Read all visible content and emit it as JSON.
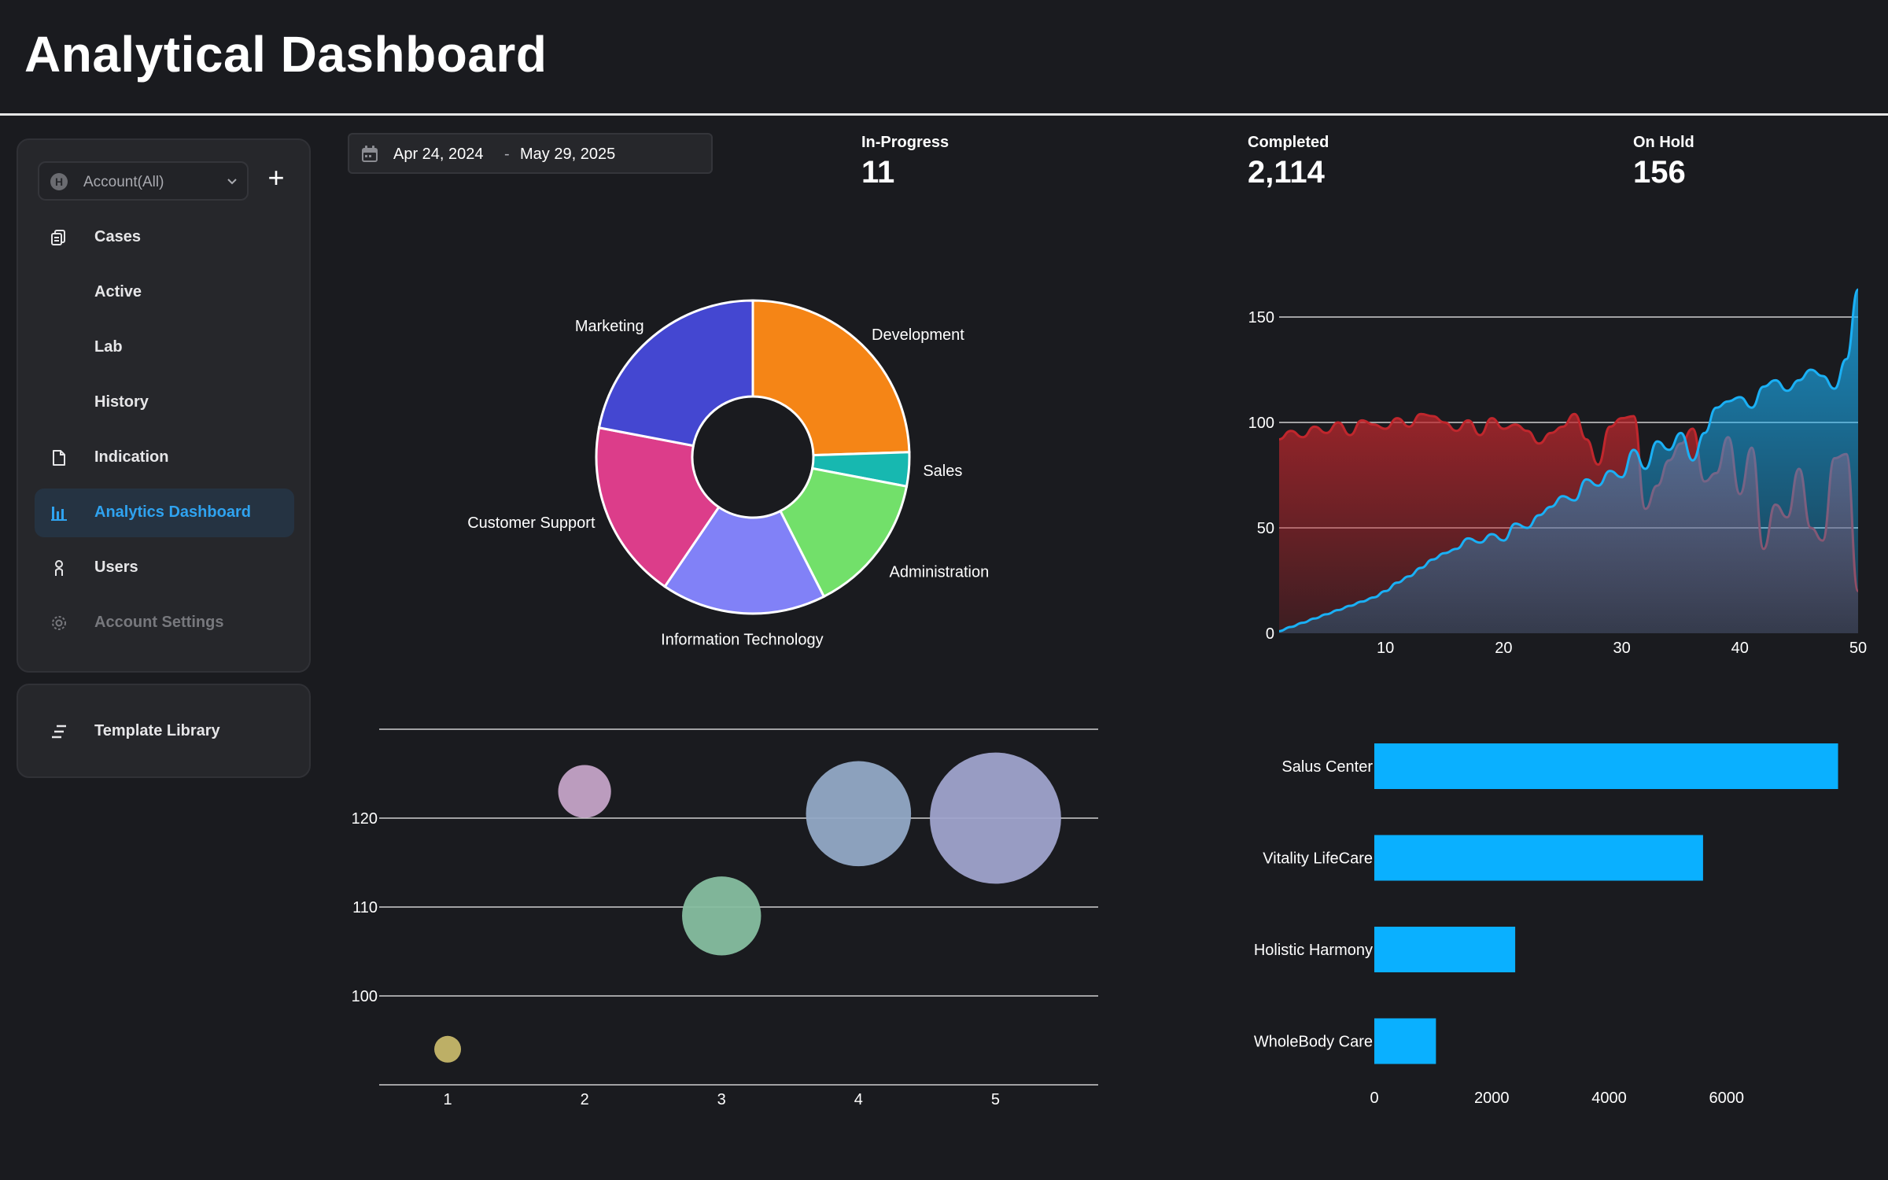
{
  "header": {
    "title": "Analytical Dashboard"
  },
  "sidebar": {
    "account_selector": {
      "label": "Account(All)",
      "glyph": "H"
    },
    "add_label": "+",
    "items": [
      {
        "label": "Cases",
        "icon": "cases-icon"
      },
      {
        "label": "Active"
      },
      {
        "label": "Lab"
      },
      {
        "label": "History"
      },
      {
        "label": "Indication",
        "icon": "document-icon"
      },
      {
        "label": "Analytics Dashboard",
        "icon": "bar-chart-icon",
        "active": true
      },
      {
        "label": "Users",
        "icon": "user-icon"
      },
      {
        "label": "Account Settings",
        "icon": "gear-icon",
        "disabled": true
      }
    ],
    "template_library": {
      "label": "Template Library",
      "icon": "list-icon"
    }
  },
  "date_range": {
    "start": "Apr 24, 2024",
    "separator": "-",
    "end": "May 29, 2025"
  },
  "stats": [
    {
      "label": "In-Progress",
      "value": "11"
    },
    {
      "label": "Completed",
      "value": "2,114"
    },
    {
      "label": "On Hold",
      "value": "156"
    }
  ],
  "colors": {
    "background": "#1a1b1f",
    "panel": "#26272b",
    "accent": "#2fa3f0",
    "bar": "#0ab0ff"
  },
  "chart_data": [
    {
      "type": "pie",
      "donut": true,
      "slices": [
        {
          "label": "Development",
          "value": 24.5,
          "color": "#f58516"
        },
        {
          "label": "Sales",
          "value": 3.5,
          "color": "#17b8b0"
        },
        {
          "label": "Administration",
          "value": 14.5,
          "color": "#72e06a"
        },
        {
          "label": "Information Technology",
          "value": 17.0,
          "color": "#8181f7"
        },
        {
          "label": "Customer Support",
          "value": 18.5,
          "color": "#dc3d8a"
        },
        {
          "label": "Marketing",
          "value": 22.0,
          "color": "#4447d1"
        }
      ]
    },
    {
      "type": "area",
      "x": [
        1,
        2,
        3,
        4,
        5,
        6,
        7,
        8,
        9,
        10,
        11,
        12,
        13,
        14,
        15,
        16,
        17,
        18,
        19,
        20,
        21,
        22,
        23,
        24,
        25,
        26,
        27,
        28,
        29,
        30,
        31,
        32,
        33,
        34,
        35,
        36,
        37,
        38,
        39,
        40,
        41,
        42,
        43,
        44,
        45,
        46,
        47,
        48,
        49,
        50
      ],
      "series": [
        {
          "color": "#c0272d",
          "values": [
            92,
            96,
            93,
            98,
            95,
            100,
            94,
            101,
            99,
            97,
            102,
            98,
            104,
            103,
            100,
            96,
            101,
            94,
            102,
            97,
            99,
            96,
            90,
            95,
            98,
            104,
            92,
            80,
            98,
            102,
            103,
            59,
            70,
            82,
            90,
            97,
            72,
            76,
            93,
            66,
            88,
            40,
            61,
            55,
            78,
            50,
            44,
            83,
            85,
            20
          ]
        },
        {
          "color": "#1ab0f5",
          "values": [
            1,
            3,
            5,
            7,
            9,
            11,
            13,
            15,
            17,
            20,
            24,
            27,
            31,
            35,
            38,
            40,
            45,
            43,
            47,
            44,
            52,
            50,
            56,
            60,
            65,
            63,
            73,
            70,
            77,
            74,
            87,
            78,
            91,
            87,
            95,
            82,
            95,
            107,
            110,
            112,
            107,
            117,
            120,
            115,
            120,
            125,
            122,
            116,
            130,
            163
          ]
        }
      ],
      "xticks": [
        10,
        20,
        30,
        40,
        50
      ],
      "yticks": [
        0,
        50,
        100,
        150
      ],
      "xlim": [
        1,
        50
      ],
      "ylim": [
        0,
        150
      ],
      "grid": true
    },
    {
      "type": "scatter",
      "bubble": true,
      "points": [
        {
          "x": 1,
          "y": 94,
          "size": 1,
          "color": "#c6b76a"
        },
        {
          "x": 2,
          "y": 123,
          "size": 3,
          "color": "#c4a3c7"
        },
        {
          "x": 3,
          "y": 109,
          "size": 5,
          "color": "#86bea0"
        },
        {
          "x": 4,
          "y": 120.5,
          "size": 7,
          "color": "#92a9c6"
        },
        {
          "x": 5,
          "y": 120,
          "size": 9,
          "color": "#9fa3cc"
        }
      ],
      "xticks": [
        1,
        2,
        3,
        4,
        5
      ],
      "yticks": [
        100,
        110,
        120
      ],
      "xlim": [
        0.5,
        5.75
      ],
      "ylim": [
        90,
        130
      ],
      "grid": true
    },
    {
      "type": "bar",
      "orientation": "horizontal",
      "categories": [
        "Salus Center",
        "Vitality LifeCare",
        "Holistic Harmony",
        "WholeBody Care"
      ],
      "values": [
        7900,
        5600,
        2400,
        1050
      ],
      "xticks": [
        0,
        2000,
        4000,
        6000
      ],
      "xlim": [
        0,
        8000
      ],
      "color": "#0ab0ff"
    }
  ]
}
